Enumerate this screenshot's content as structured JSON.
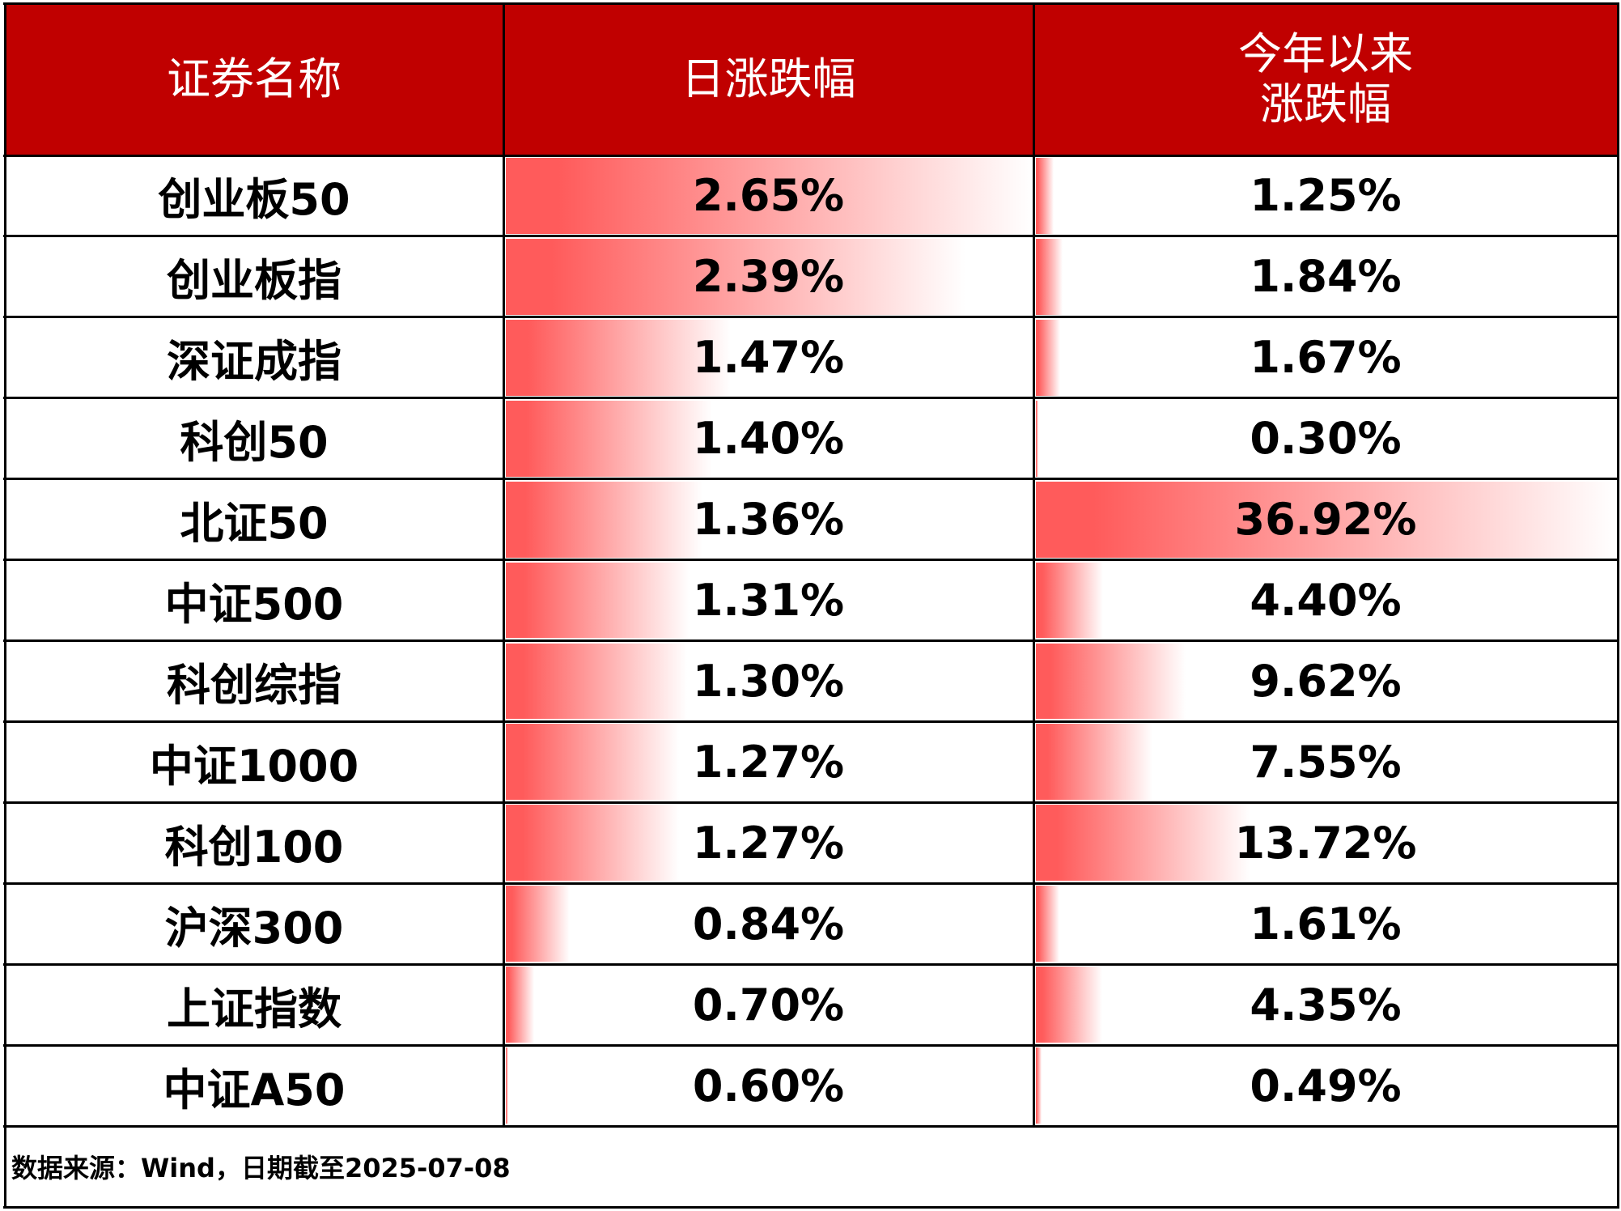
{
  "table": {
    "header": [
      "证券名称",
      "日涨跌幅",
      "今年以来\n涨跌幅"
    ],
    "rows": [
      [
        "创业板50",
        "2.65%",
        "1.25%"
      ],
      [
        "创业板指",
        "2.39%",
        "1.84%"
      ],
      [
        "深证成指",
        "1.47%",
        "1.67%"
      ],
      [
        "科创50",
        "1.40%",
        "0.30%"
      ],
      [
        "北证50",
        "1.36%",
        "36.92%"
      ],
      [
        "中证500",
        "1.31%",
        "4.40%"
      ],
      [
        "科创综指",
        "1.30%",
        "9.62%"
      ],
      [
        "中证1000",
        "1.27%",
        "7.55%"
      ],
      [
        "科创100",
        "1.27%",
        "13.72%"
      ],
      [
        "沪深300",
        "0.84%",
        "1.61%"
      ],
      [
        "上证指数",
        "0.70%",
        "4.35%"
      ],
      [
        "中证A50",
        "0.60%",
        "0.49%"
      ]
    ]
  },
  "footnote": "数据来源：Wind，日期截至2025-07-08"
}
